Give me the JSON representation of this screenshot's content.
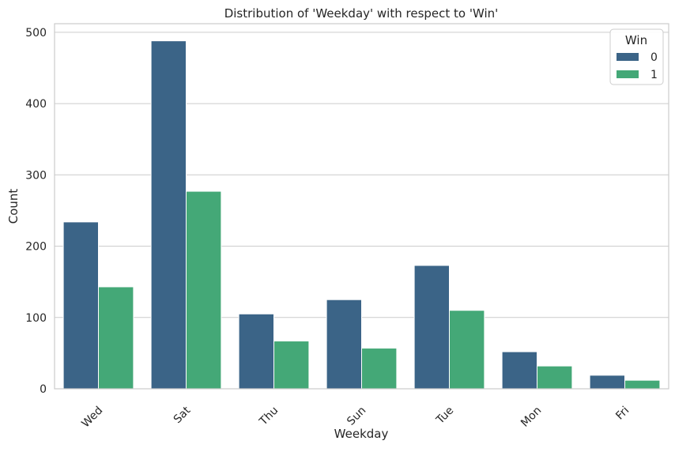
{
  "chart_data": {
    "type": "bar",
    "title": "Distribution of 'Weekday' with respect to 'Win'",
    "xlabel": "Weekday",
    "ylabel": "Count",
    "categories": [
      "Wed",
      "Sat",
      "Thu",
      "Sun",
      "Tue",
      "Mon",
      "Fri"
    ],
    "series": [
      {
        "name": "0",
        "color": "#3b6487",
        "values": [
          234,
          488,
          105,
          125,
          173,
          52,
          19
        ]
      },
      {
        "name": "1",
        "color": "#44a877",
        "values": [
          143,
          277,
          67,
          57,
          110,
          32,
          12
        ]
      }
    ],
    "ylim": [
      0,
      512
    ],
    "yticks": [
      0,
      100,
      200,
      300,
      400,
      500
    ],
    "grid": true,
    "legend": {
      "title": "Win",
      "position": "top-right"
    },
    "xtick_rotation": "45 degrees"
  }
}
